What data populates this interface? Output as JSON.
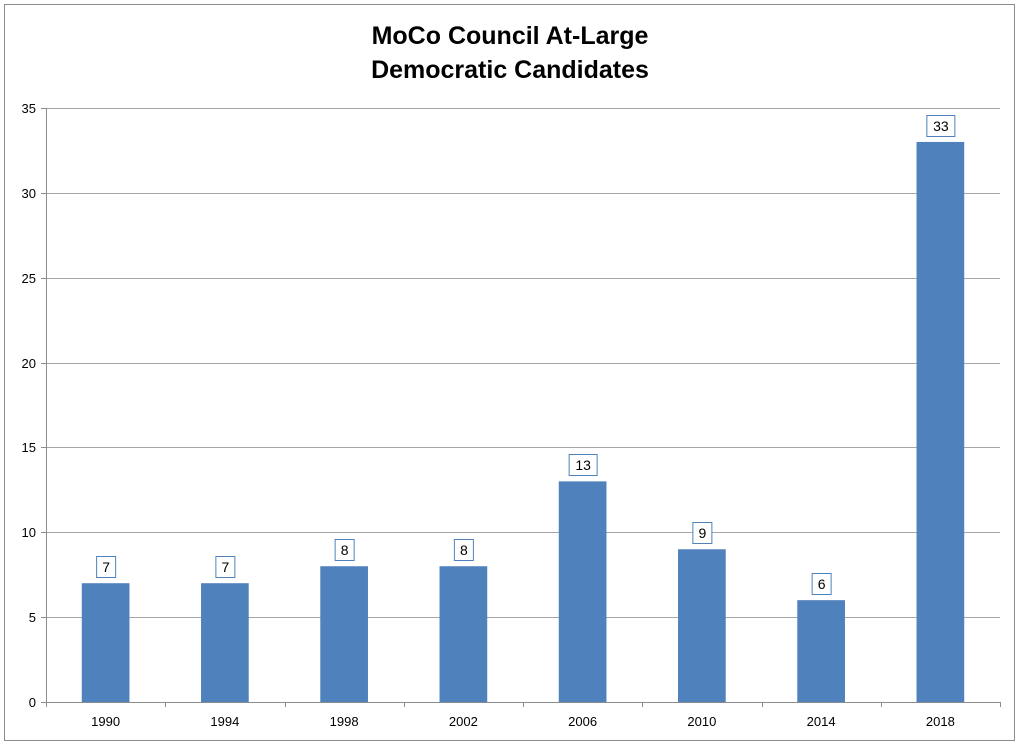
{
  "chart_data": {
    "type": "bar",
    "title_lines": [
      "MoCo Council At-Large",
      "Democratic Candidates"
    ],
    "categories": [
      "1990",
      "1994",
      "1998",
      "2002",
      "2006",
      "2010",
      "2014",
      "2018"
    ],
    "values": [
      7,
      7,
      8,
      8,
      13,
      9,
      6,
      33
    ],
    "ylim": [
      0,
      35
    ],
    "yticks": [
      0,
      5,
      10,
      15,
      20,
      25,
      30,
      35
    ],
    "grid": true,
    "legend": "none",
    "data_labels": true,
    "colors": {
      "bar": "#4f81bd",
      "grid": "#a6a6a6",
      "axis": "#8c8c8c",
      "label_border": "#4f81bd"
    }
  }
}
